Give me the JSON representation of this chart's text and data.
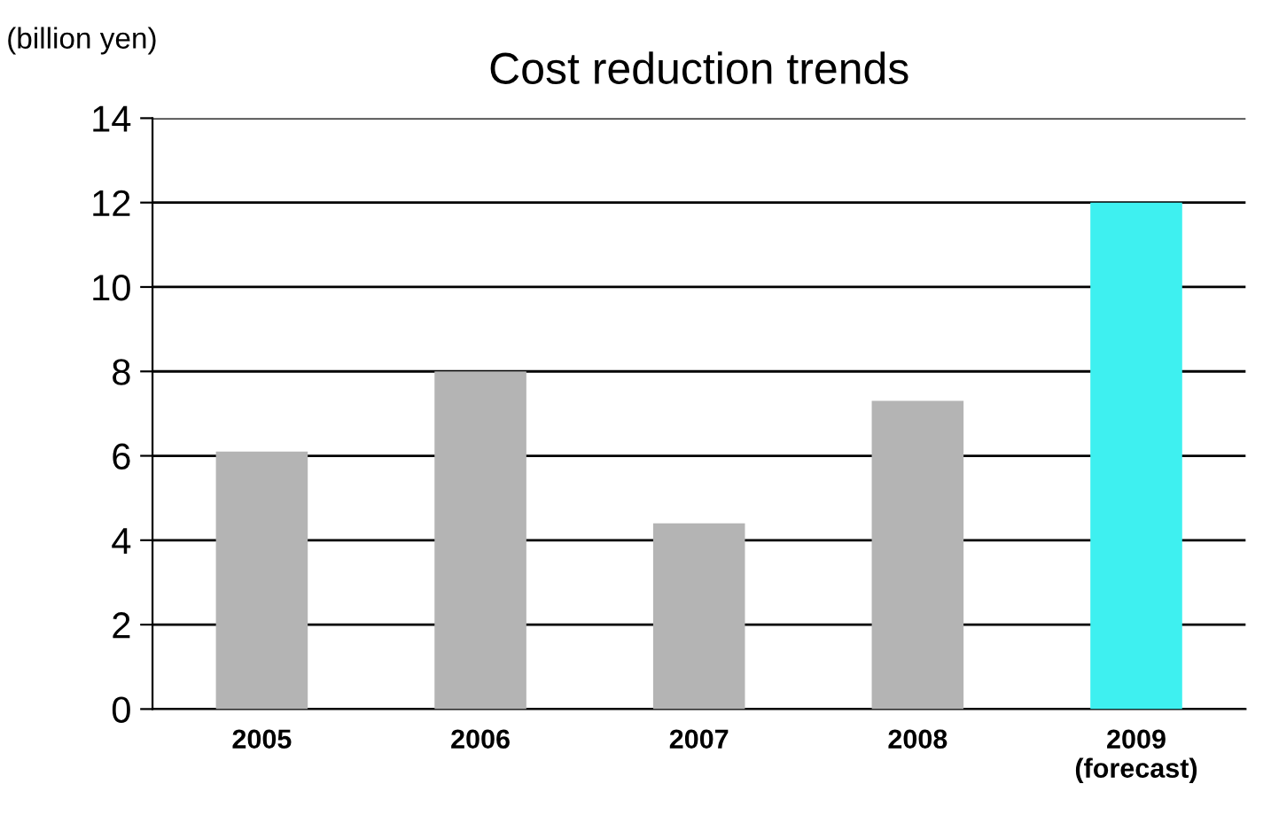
{
  "chart_data": {
    "type": "bar",
    "title": "Cost reduction trends",
    "ylabel": "(billion yen)",
    "categories": [
      "2005",
      "2006",
      "2007",
      "2008",
      "2009\n(forecast)"
    ],
    "values": [
      6.1,
      8.0,
      4.4,
      7.3,
      12.0
    ],
    "colors": [
      "#b4b4b4",
      "#b4b4b4",
      "#b4b4b4",
      "#b4b4b4",
      "#3ef0f0"
    ],
    "ylim": [
      0,
      14
    ],
    "yticks": [
      0,
      2,
      4,
      6,
      8,
      10,
      12,
      14
    ],
    "grid": "y",
    "legend": false
  }
}
